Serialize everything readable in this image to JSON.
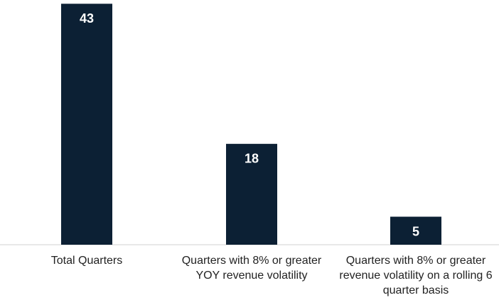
{
  "chart_data": {
    "type": "bar",
    "categories": [
      "Total Quarters",
      "Quarters with 8% or greater YOY revenue volatility",
      "Quarters with 8% or greater revenue volatility on a rolling 6 quarter basis"
    ],
    "values": [
      43,
      18,
      5
    ],
    "color": "#0c2034"
  }
}
